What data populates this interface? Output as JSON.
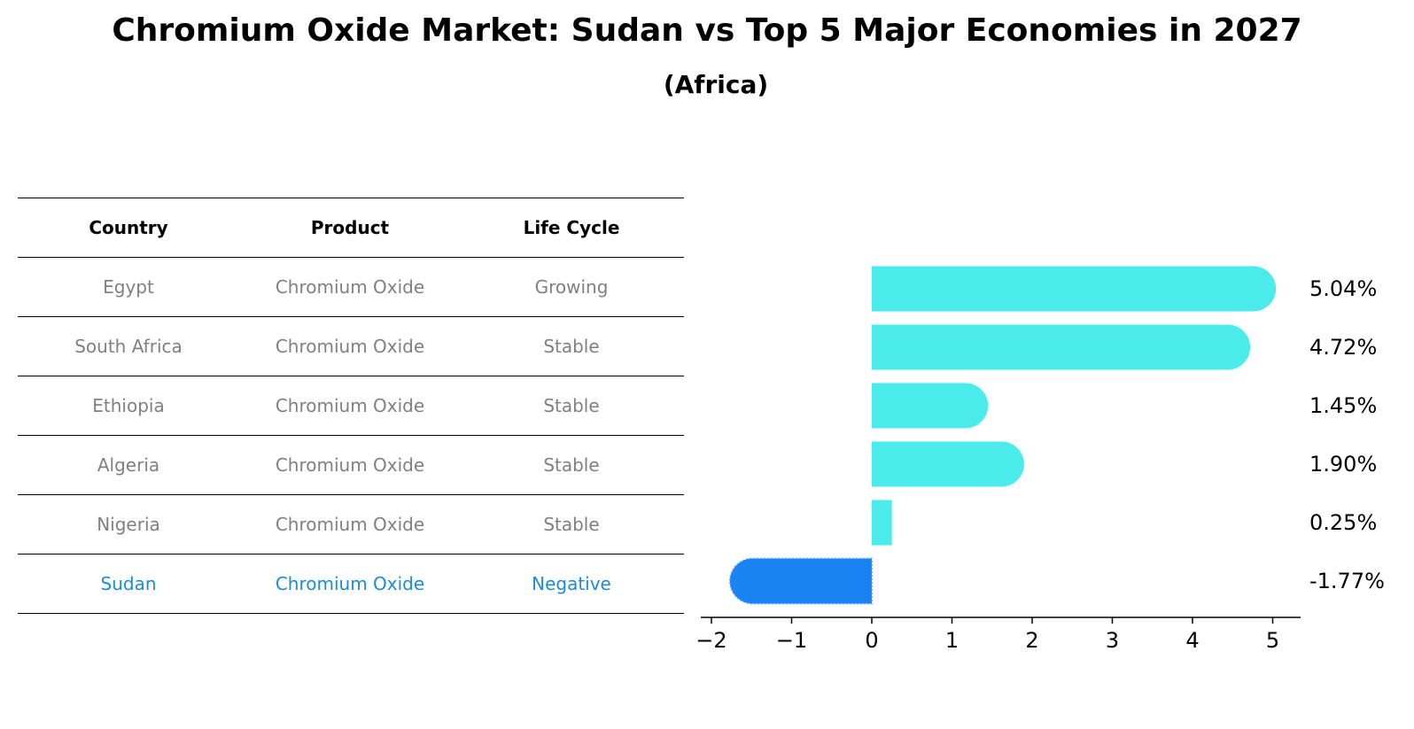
{
  "title": "Chromium Oxide Market: Sudan vs Top 5 Major Economies in 2027",
  "subtitle": "(Africa)",
  "colors": {
    "bar_positive": "#4cebeb",
    "bar_highlight": "#1a82f2",
    "highlight_text": "#1a8cd8",
    "muted_text": "#808080"
  },
  "table": {
    "headers": [
      "Country",
      "Product",
      "Life Cycle"
    ],
    "rows": [
      [
        "Egypt",
        "Chromium Oxide",
        "Growing"
      ],
      [
        "South Africa",
        "Chromium Oxide",
        "Stable"
      ],
      [
        "Ethiopia",
        "Chromium Oxide",
        "Stable"
      ],
      [
        "Algeria",
        "Chromium Oxide",
        "Stable"
      ],
      [
        "Nigeria",
        "Chromium Oxide",
        "Stable"
      ],
      [
        "Sudan",
        "Chromium Oxide",
        "Negative"
      ]
    ],
    "highlight_row": 5
  },
  "chart_data": {
    "type": "bar",
    "orientation": "horizontal",
    "categories": [
      "Egypt",
      "South Africa",
      "Ethiopia",
      "Algeria",
      "Nigeria",
      "Sudan"
    ],
    "values": [
      5.04,
      4.72,
      1.45,
      1.9,
      0.25,
      -1.77
    ],
    "value_labels": [
      "5.04%",
      "4.72%",
      "1.45%",
      "1.90%",
      "0.25%",
      "-1.77%"
    ],
    "highlight_category": "Sudan",
    "xlim": [
      -2.1,
      5.4
    ],
    "xticks": [
      -2,
      -1,
      0,
      1,
      2,
      3,
      4,
      5
    ],
    "xtick_labels": [
      "−2",
      "−1",
      "0",
      "1",
      "2",
      "3",
      "4",
      "5"
    ],
    "xlabel": "",
    "ylabel": "",
    "grid": false
  }
}
